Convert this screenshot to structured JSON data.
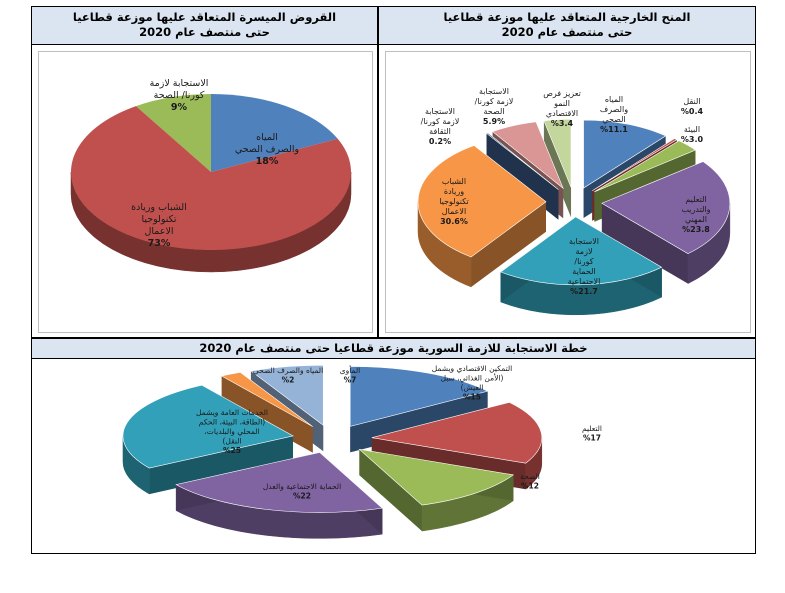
{
  "chart_data": [
    {
      "type": "pie",
      "title": "القروض الميسرة المتعاقد عليها موزعة قطاعيا",
      "subtitle": "حتى منتصف عام 2020",
      "slices": [
        {
          "label": "المياه والصرف الصحي",
          "value": 18,
          "display": "18%",
          "color": "#4f81bd"
        },
        {
          "label": "الشباب وريادة تكنولوجيا الاعمال",
          "value": 73,
          "display": "73%",
          "color": "#c0504d"
        },
        {
          "label": "الاستجابة لازمة كورنا/ الصحة",
          "value": 9,
          "display": "9%",
          "color": "#9bbb59"
        }
      ]
    },
    {
      "type": "pie",
      "title": "المنح الخارجية المتعاقد عليها موزعة قطاعيا",
      "subtitle": "حتى منتصف عام 2020",
      "slices": [
        {
          "label": "المياه والصرف الصحي",
          "value": 11.1,
          "display": "%11.1",
          "color": "#4f81bd"
        },
        {
          "label": "النقل",
          "value": 0.4,
          "display": "%0.4",
          "color": "#c0504d"
        },
        {
          "label": "البيئة",
          "value": 3.0,
          "display": "%3.0",
          "color": "#9bbb59"
        },
        {
          "label": "التعليم والتدريب المهني",
          "value": 23.8,
          "display": "%23.8",
          "color": "#8064a2"
        },
        {
          "label": "الاستجابة لازمة كورنا/ الحماية الاجتماعية",
          "value": 21.7,
          "display": "%21.7",
          "color": "#31a0b8"
        },
        {
          "label": "الشباب وريادة تكنولوجيا الاعمال",
          "value": 30.6,
          "display": "30.6%",
          "color": "#f79646"
        },
        {
          "label": "الاستجابة لازمة كورنا/ الثقافة",
          "value": 0.2,
          "display": "0.2%",
          "color": "#3c5a8a"
        },
        {
          "label": "الاستجابة لازمة كورنا/ الصحة",
          "value": 5.9,
          "display": "5.9%",
          "color": "#d99694"
        },
        {
          "label": "تعزيز فرص النمو الاقتصادي",
          "value": 3.4,
          "display": "%3.4",
          "color": "#c3d69b"
        }
      ]
    },
    {
      "type": "pie",
      "title": "خطة الاستجابة للازمة السورية موزعة قطاعيا حتى منتصف عام 2020",
      "slices": [
        {
          "label": "التمكين الاقتصادي ويشمل (الأمن الغذائي، سبل العيش)",
          "value": 15,
          "display": "%15",
          "color": "#4f81bd"
        },
        {
          "label": "التعليم",
          "value": 17,
          "display": "%17",
          "color": "#c0504d"
        },
        {
          "label": "الصحة",
          "value": 12,
          "display": "%12",
          "color": "#9bbb59"
        },
        {
          "label": "الحماية الاجتماعية والعدل",
          "value": 22,
          "display": "%22",
          "color": "#8064a2"
        },
        {
          "label": "الخدمات العامة ويشمل (الطاقة، البيئة، الحكم المحلي والبلديات، النقل)",
          "value": 25,
          "display": "%25",
          "color": "#31a0b8"
        },
        {
          "label": "المياه والصرف الصحي",
          "value": 2,
          "display": "%2",
          "color": "#f79646"
        },
        {
          "label": "المأوى",
          "value": 7,
          "display": "%7",
          "color": "#95b3d7"
        }
      ]
    }
  ]
}
